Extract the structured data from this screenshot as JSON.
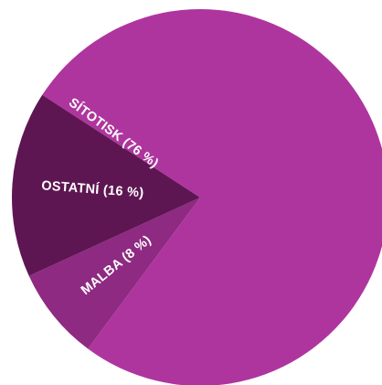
{
  "chart_data": {
    "type": "pie",
    "slices": [
      {
        "label": "SÍTOTISK (76 %)",
        "value": 76,
        "color": "#af359e"
      },
      {
        "label": "MALBA (8 %)",
        "value": 8,
        "color": "#8e2a82"
      },
      {
        "label": "OSTATNÍ (16 %)",
        "value": 16,
        "color": "#5e1652"
      }
    ],
    "title": "",
    "legend": "none"
  }
}
